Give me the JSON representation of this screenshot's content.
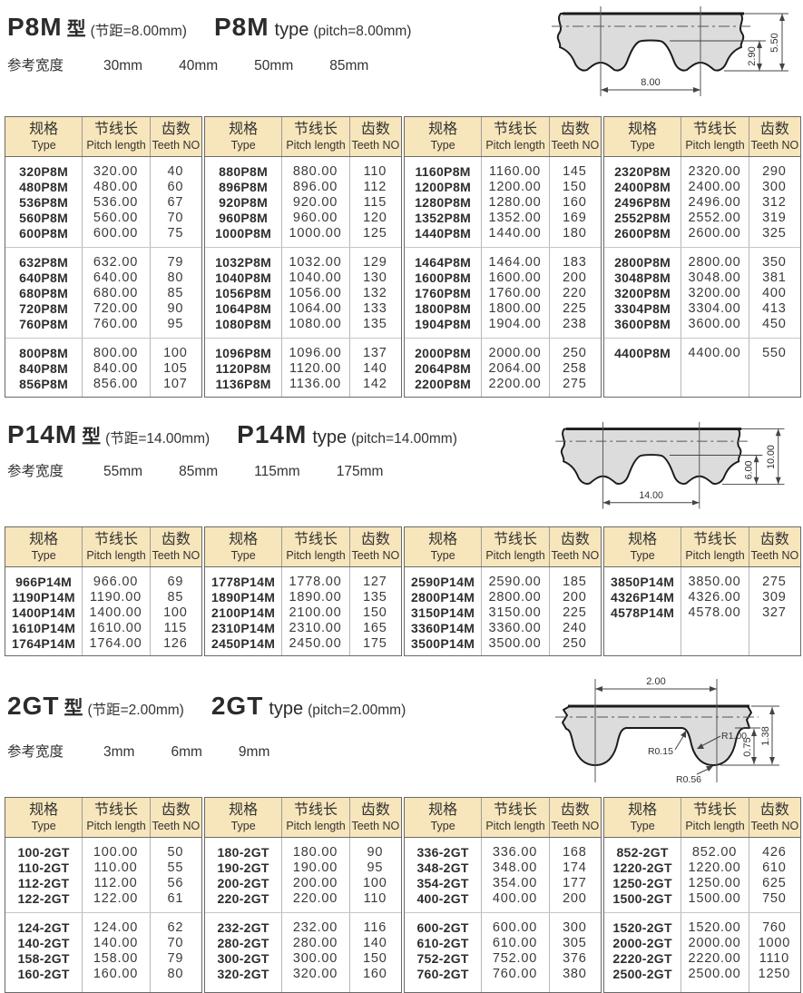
{
  "table_header": {
    "col1_zh": "规格",
    "col1_en": "Type",
    "col2_zh": "节线长",
    "col2_en": "Pitch length",
    "col3_zh": "齿数",
    "col3_en": "Teeth NO"
  },
  "colors": {
    "header_bg": "#f7e6bb",
    "table_border": "#6a6a6a",
    "column_divider": "#b8b8b8",
    "text": "#3a3a3a",
    "diagram_fill": "#dcdcdc"
  },
  "sections": [
    {
      "id": "P8M",
      "title_code": "P8M",
      "title_zh_word": "型",
      "title_zh_note": "(节距=8.00mm)",
      "title_en_word": "type",
      "title_en_note": "(pitch=8.00mm)",
      "width_label": "参考宽度",
      "widths": [
        "30mm",
        "40mm",
        "50mm",
        "85mm"
      ],
      "diagram": {
        "pitch": "8.00",
        "tooth_height": "2.90",
        "thickness": "5.50"
      },
      "tables": [
        {
          "groups": [
            [
              [
                "320P8M",
                "320.00",
                "40"
              ],
              [
                "480P8M",
                "480.00",
                "60"
              ],
              [
                "536P8M",
                "536.00",
                "67"
              ],
              [
                "560P8M",
                "560.00",
                "70"
              ],
              [
                "600P8M",
                "600.00",
                "75"
              ]
            ],
            [
              [
                "632P8M",
                "632.00",
                "79"
              ],
              [
                "640P8M",
                "640.00",
                "80"
              ],
              [
                "680P8M",
                "680.00",
                "85"
              ],
              [
                "720P8M",
                "720.00",
                "90"
              ],
              [
                "760P8M",
                "760.00",
                "95"
              ]
            ],
            [
              [
                "800P8M",
                "800.00",
                "100"
              ],
              [
                "840P8M",
                "840.00",
                "105"
              ],
              [
                "856P8M",
                "856.00",
                "107"
              ]
            ]
          ]
        },
        {
          "groups": [
            [
              [
                "880P8M",
                "880.00",
                "110"
              ],
              [
                "896P8M",
                "896.00",
                "112"
              ],
              [
                "920P8M",
                "920.00",
                "115"
              ],
              [
                "960P8M",
                "960.00",
                "120"
              ],
              [
                "1000P8M",
                "1000.00",
                "125"
              ]
            ],
            [
              [
                "1032P8M",
                "1032.00",
                "129"
              ],
              [
                "1040P8M",
                "1040.00",
                "130"
              ],
              [
                "1056P8M",
                "1056.00",
                "132"
              ],
              [
                "1064P8M",
                "1064.00",
                "133"
              ],
              [
                "1080P8M",
                "1080.00",
                "135"
              ]
            ],
            [
              [
                "1096P8M",
                "1096.00",
                "137"
              ],
              [
                "1120P8M",
                "1120.00",
                "140"
              ],
              [
                "1136P8M",
                "1136.00",
                "142"
              ]
            ]
          ]
        },
        {
          "groups": [
            [
              [
                "1160P8M",
                "1160.00",
                "145"
              ],
              [
                "1200P8M",
                "1200.00",
                "150"
              ],
              [
                "1280P8M",
                "1280.00",
                "160"
              ],
              [
                "1352P8M",
                "1352.00",
                "169"
              ],
              [
                "1440P8M",
                "1440.00",
                "180"
              ]
            ],
            [
              [
                "1464P8M",
                "1464.00",
                "183"
              ],
              [
                "1600P8M",
                "1600.00",
                "200"
              ],
              [
                "1760P8M",
                "1760.00",
                "220"
              ],
              [
                "1800P8M",
                "1800.00",
                "225"
              ],
              [
                "1904P8M",
                "1904.00",
                "238"
              ]
            ],
            [
              [
                "2000P8M",
                "2000.00",
                "250"
              ],
              [
                "2064P8M",
                "2064.00",
                "258"
              ],
              [
                "2200P8M",
                "2200.00",
                "275"
              ]
            ]
          ]
        },
        {
          "groups": [
            [
              [
                "2320P8M",
                "2320.00",
                "290"
              ],
              [
                "2400P8M",
                "2400.00",
                "300"
              ],
              [
                "2496P8M",
                "2496.00",
                "312"
              ],
              [
                "2552P8M",
                "2552.00",
                "319"
              ],
              [
                "2600P8M",
                "2600.00",
                "325"
              ]
            ],
            [
              [
                "2800P8M",
                "2800.00",
                "350"
              ],
              [
                "3048P8M",
                "3048.00",
                "381"
              ],
              [
                "3200P8M",
                "3200.00",
                "400"
              ],
              [
                "3304P8M",
                "3304.00",
                "413"
              ],
              [
                "3600P8M",
                "3600.00",
                "450"
              ]
            ],
            [
              [
                "4400P8M",
                "4400.00",
                "550"
              ]
            ]
          ]
        }
      ]
    },
    {
      "id": "P14M",
      "title_code": "P14M",
      "title_zh_word": "型",
      "title_zh_note": "(节距=14.00mm)",
      "title_en_word": "type",
      "title_en_note": "(pitch=14.00mm)",
      "width_label": "参考宽度",
      "widths": [
        "55mm",
        "85mm",
        "115mm",
        "175mm"
      ],
      "diagram": {
        "pitch": "14.00",
        "tooth_height": "6.00",
        "thickness": "10.00"
      },
      "tables": [
        {
          "groups": [
            [
              [
                "966P14M",
                "966.00",
                "69"
              ],
              [
                "1190P14M",
                "1190.00",
                "85"
              ],
              [
                "1400P14M",
                "1400.00",
                "100"
              ],
              [
                "1610P14M",
                "1610.00",
                "115"
              ],
              [
                "1764P14M",
                "1764.00",
                "126"
              ]
            ]
          ]
        },
        {
          "groups": [
            [
              [
                "1778P14M",
                "1778.00",
                "127"
              ],
              [
                "1890P14M",
                "1890.00",
                "135"
              ],
              [
                "2100P14M",
                "2100.00",
                "150"
              ],
              [
                "2310P14M",
                "2310.00",
                "165"
              ],
              [
                "2450P14M",
                "2450.00",
                "175"
              ]
            ]
          ]
        },
        {
          "groups": [
            [
              [
                "2590P14M",
                "2590.00",
                "185"
              ],
              [
                "2800P14M",
                "2800.00",
                "200"
              ],
              [
                "3150P14M",
                "3150.00",
                "225"
              ],
              [
                "3360P14M",
                "3360.00",
                "240"
              ],
              [
                "3500P14M",
                "3500.00",
                "250"
              ]
            ]
          ]
        },
        {
          "groups": [
            [
              [
                "3850P14M",
                "3850.00",
                "275"
              ],
              [
                "4326P14M",
                "4326.00",
                "309"
              ],
              [
                "4578P14M",
                "4578.00",
                "327"
              ]
            ]
          ]
        }
      ]
    },
    {
      "id": "2GT",
      "title_code": "2GT",
      "title_zh_word": "型",
      "title_zh_note": "(节距=2.00mm)",
      "title_en_word": "type",
      "title_en_note": "(pitch=2.00mm)",
      "width_label": "参考宽度",
      "widths": [
        "3mm",
        "6mm",
        "9mm"
      ],
      "diagram": {
        "pitch": "2.00",
        "radius_flank": "R1.00",
        "radius_fillet": "R0.15",
        "radius_tip": "R0.56",
        "tooth_height": "0.75",
        "thickness": "1.38"
      },
      "tables": [
        {
          "groups": [
            [
              [
                "100-2GT",
                "100.00",
                "50"
              ],
              [
                "110-2GT",
                "110.00",
                "55"
              ],
              [
                "112-2GT",
                "112.00",
                "56"
              ],
              [
                "122-2GT",
                "122.00",
                "61"
              ]
            ],
            [
              [
                "124-2GT",
                "124.00",
                "62"
              ],
              [
                "140-2GT",
                "140.00",
                "70"
              ],
              [
                "158-2GT",
                "158.00",
                "79"
              ],
              [
                "160-2GT",
                "160.00",
                "80"
              ]
            ]
          ]
        },
        {
          "groups": [
            [
              [
                "180-2GT",
                "180.00",
                "90"
              ],
              [
                "190-2GT",
                "190.00",
                "95"
              ],
              [
                "200-2GT",
                "200.00",
                "100"
              ],
              [
                "220-2GT",
                "220.00",
                "110"
              ]
            ],
            [
              [
                "232-2GT",
                "232.00",
                "116"
              ],
              [
                "280-2GT",
                "280.00",
                "140"
              ],
              [
                "300-2GT",
                "300.00",
                "150"
              ],
              [
                "320-2GT",
                "320.00",
                "160"
              ]
            ]
          ]
        },
        {
          "groups": [
            [
              [
                "336-2GT",
                "336.00",
                "168"
              ],
              [
                "348-2GT",
                "348.00",
                "174"
              ],
              [
                "354-2GT",
                "354.00",
                "177"
              ],
              [
                "400-2GT",
                "400.00",
                "200"
              ]
            ],
            [
              [
                "600-2GT",
                "600.00",
                "300"
              ],
              [
                "610-2GT",
                "610.00",
                "305"
              ],
              [
                "752-2GT",
                "752.00",
                "376"
              ],
              [
                "760-2GT",
                "760.00",
                "380"
              ]
            ]
          ]
        },
        {
          "groups": [
            [
              [
                "852-2GT",
                "852.00",
                "426"
              ],
              [
                "1220-2GT",
                "1220.00",
                "610"
              ],
              [
                "1250-2GT",
                "1250.00",
                "625"
              ],
              [
                "1500-2GT",
                "1500.00",
                "750"
              ]
            ],
            [
              [
                "1520-2GT",
                "1520.00",
                "760"
              ],
              [
                "2000-2GT",
                "2000.00",
                "1000"
              ],
              [
                "2220-2GT",
                "2220.00",
                "1110"
              ],
              [
                "2500-2GT",
                "2500.00",
                "1250"
              ]
            ]
          ]
        }
      ]
    }
  ]
}
